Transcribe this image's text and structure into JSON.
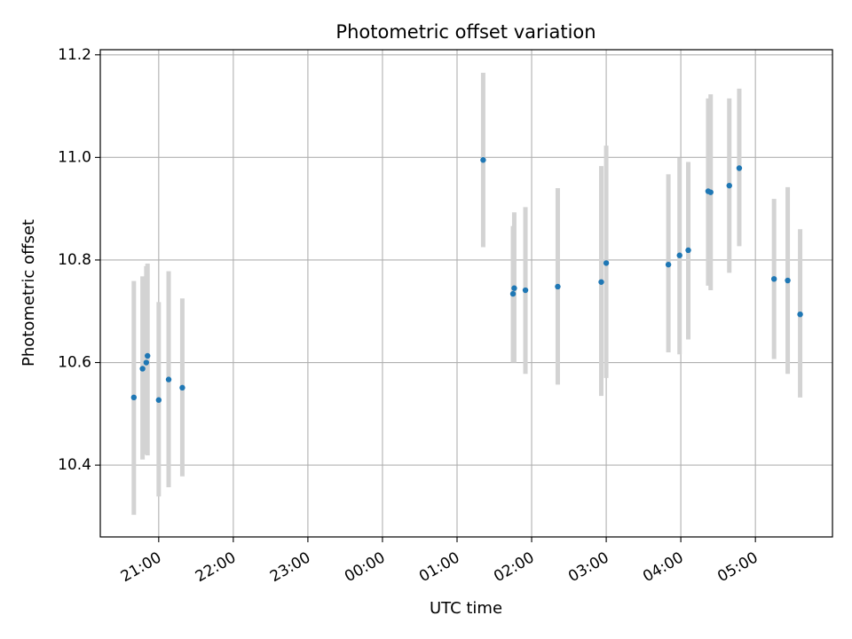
{
  "chart_data": {
    "type": "scatter",
    "title": "Photometric offset variation",
    "xlabel": "UTC time",
    "ylabel": "Photometric offset",
    "x_axis_kind": "time",
    "x_start": "20:00",
    "xlim": [
      "20:13",
      "06:02"
    ],
    "ylim": [
      10.26,
      11.21
    ],
    "x_ticks": [
      "21:00",
      "22:00",
      "23:00",
      "00:00",
      "01:00",
      "02:00",
      "03:00",
      "04:00",
      "05:00"
    ],
    "y_ticks": [
      10.4,
      10.6,
      10.8,
      11.0,
      11.2
    ],
    "y_tick_labels": [
      "10.4",
      "10.6",
      "10.8",
      "11.0",
      "11.2"
    ],
    "grid": true,
    "colors": {
      "points": "#1f77b4",
      "errorbars": "#d3d3d3",
      "grid": "#b0b0b0"
    },
    "series": [
      {
        "x": [
          "20:40",
          "20:47",
          "20:50",
          "20:51",
          "21:00",
          "21:08",
          "21:19",
          "01:21",
          "01:45",
          "01:46",
          "01:55",
          "02:21",
          "02:56",
          "03:00",
          "03:50",
          "03:59",
          "04:06",
          "04:22",
          "04:24",
          "04:39",
          "04:47",
          "05:15",
          "05:26",
          "05:36"
        ],
        "y": [
          10.532,
          10.588,
          10.6,
          10.613,
          10.527,
          10.567,
          10.551,
          10.995,
          10.734,
          10.745,
          10.741,
          10.748,
          10.757,
          10.794,
          10.791,
          10.809,
          10.819,
          10.934,
          10.932,
          10.945,
          10.979,
          10.763,
          10.76,
          10.694
        ],
        "err_low": [
          10.303,
          10.411,
          10.421,
          10.419,
          10.339,
          10.357,
          10.378,
          10.825,
          10.6,
          10.6,
          10.578,
          10.557,
          10.535,
          10.57,
          10.62,
          10.616,
          10.645,
          10.75,
          10.741,
          10.775,
          10.827,
          10.607,
          10.578,
          10.532
        ],
        "err_high": [
          10.759,
          10.768,
          10.788,
          10.793,
          10.718,
          10.778,
          10.725,
          11.165,
          10.866,
          10.893,
          10.903,
          10.94,
          10.983,
          11.023,
          10.967,
          10.999,
          10.991,
          11.115,
          11.123,
          11.115,
          11.134,
          10.919,
          10.942,
          10.86
        ]
      }
    ]
  }
}
